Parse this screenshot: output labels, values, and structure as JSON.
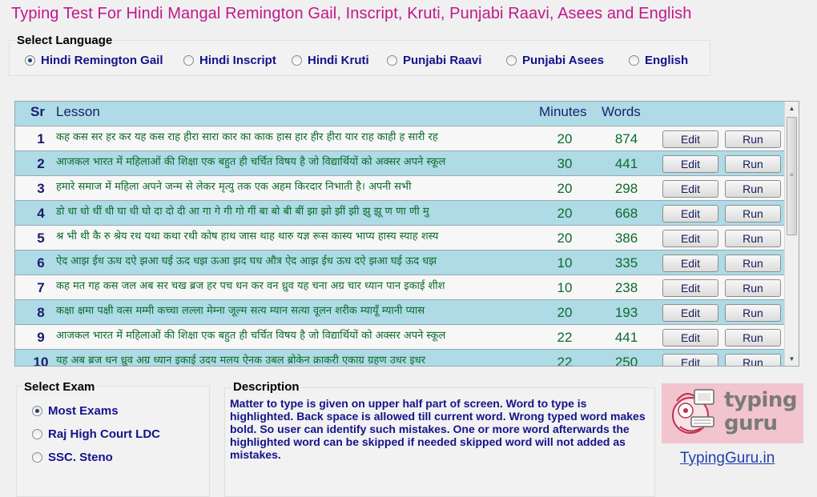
{
  "title": "Typing Test For Hindi Mangal Remington Gail, Inscript, Kruti, Punjabi Raavi, Asees and English",
  "language": {
    "caption": "Select Language",
    "options": [
      "Hindi Remington Gail",
      "Hindi Inscript",
      "Hindi Kruti",
      "Punjabi Raavi",
      "Punjabi Asees",
      "English"
    ],
    "selected": "Hindi Remington Gail"
  },
  "grid": {
    "headers": {
      "sr": "Sr",
      "lesson": "Lesson",
      "minutes": "Minutes",
      "words": "Words"
    },
    "edit_label": "Edit",
    "run_label": "Run",
    "rows": [
      {
        "sr": "1",
        "lesson": "कह कस सर हर कर यह कस राह हीरा सारा कार का काक हास हार हीर हीरा यार राह काही ह सारी रह",
        "minutes": "20",
        "words": "874"
      },
      {
        "sr": "2",
        "lesson": "आजकल भारत में महिलाओं की शिक्षा एक बहुत ही चर्चित विषय है जो विद्यार्थियों को अक्सर अपने स्कूल",
        "minutes": "30",
        "words": "441"
      },
      {
        "sr": "3",
        "lesson": "हमारे समाज में महिला अपने जन्म से लेकर मृत्यु तक एक अहम किरदार निभाती है। अपनी सभी",
        "minutes": "20",
        "words": "298"
      },
      {
        "sr": "4",
        "lesson": "डो धा धो धीं धी घा धी घो दा दो दी आ गा गे गी गो गीं बा बो बी बीं झा झो झीं झी झु झू ण णा णी मु",
        "minutes": "20",
        "words": "668"
      },
      {
        "sr": "5",
        "lesson": "श्र भी थी कै रु श्रेय रथ यथा कथा रथी कोष हाथ जास थाह थारु यज्ञ रूस कास्य भाप्य हास्य स्याह शस्य",
        "minutes": "20",
        "words": "386"
      },
      {
        "sr": "6",
        "lesson": "ऐद आझ ईध ऊध दऐ झआ घई ऊद धझ ऊआ झद घध औत्र ऐद आझ ईध ऊध दऐ झआ घई ऊद धझ",
        "minutes": "10",
        "words": "335"
      },
      {
        "sr": "7",
        "lesson": "कह मत गह कस जल अब सर चख ब्रज हर पच धन कर वन ध्रुव यह चना अग्र चार ध्यान पान इकाई शीश",
        "minutes": "10",
        "words": "238"
      },
      {
        "sr": "8",
        "lesson": "कक्षा क्षमा पक्षी वत्स मम्मी कच्चा लल्ला मेम्ना जूल्म सत्य म्यान सत्या वूलन शरीक म्यायूँ म्यानी प्यास",
        "minutes": "20",
        "words": "193"
      },
      {
        "sr": "9",
        "lesson": "आजकल भारत में महिलाओं की शिक्षा एक बहुत ही चर्चित विषय है जो विद्यार्थियों को अक्सर अपने स्कूल",
        "minutes": "22",
        "words": "441"
      },
      {
        "sr": "10",
        "lesson": "यह अब ब्रज धन ध्रुव अग्र ध्यान इकाई उदय मलय ऐनक उबल ब्रोकेन क्राकरी एकाग्र ग्रहण उधर इधर",
        "minutes": "22",
        "words": "250"
      }
    ]
  },
  "exam": {
    "caption": "Select Exam",
    "options": [
      "Most Exams",
      "Raj High Court LDC",
      "SSC. Steno"
    ],
    "selected": "Most Exams"
  },
  "description": {
    "caption": "Description",
    "text": "Matter to type is given on upper half part of screen. Word to type is highlighted. Back space is allowed till current word. Wrong typed word makes bold. So user can identify such mistakes. One or more word afterwards the highlighted word can be skipped if needed skipped word will not added as mistakes."
  },
  "brand": {
    "logo_text": "typing guru",
    "link": "TypingGuru.in"
  },
  "colors": {
    "title": "#c0188a",
    "header_bg": "#aedbe6",
    "row_alt_bg": "#aedbe6",
    "lesson_text": "#0c6a2a",
    "label_text": "#13138a",
    "logo_bg": "#f2c4ce"
  }
}
